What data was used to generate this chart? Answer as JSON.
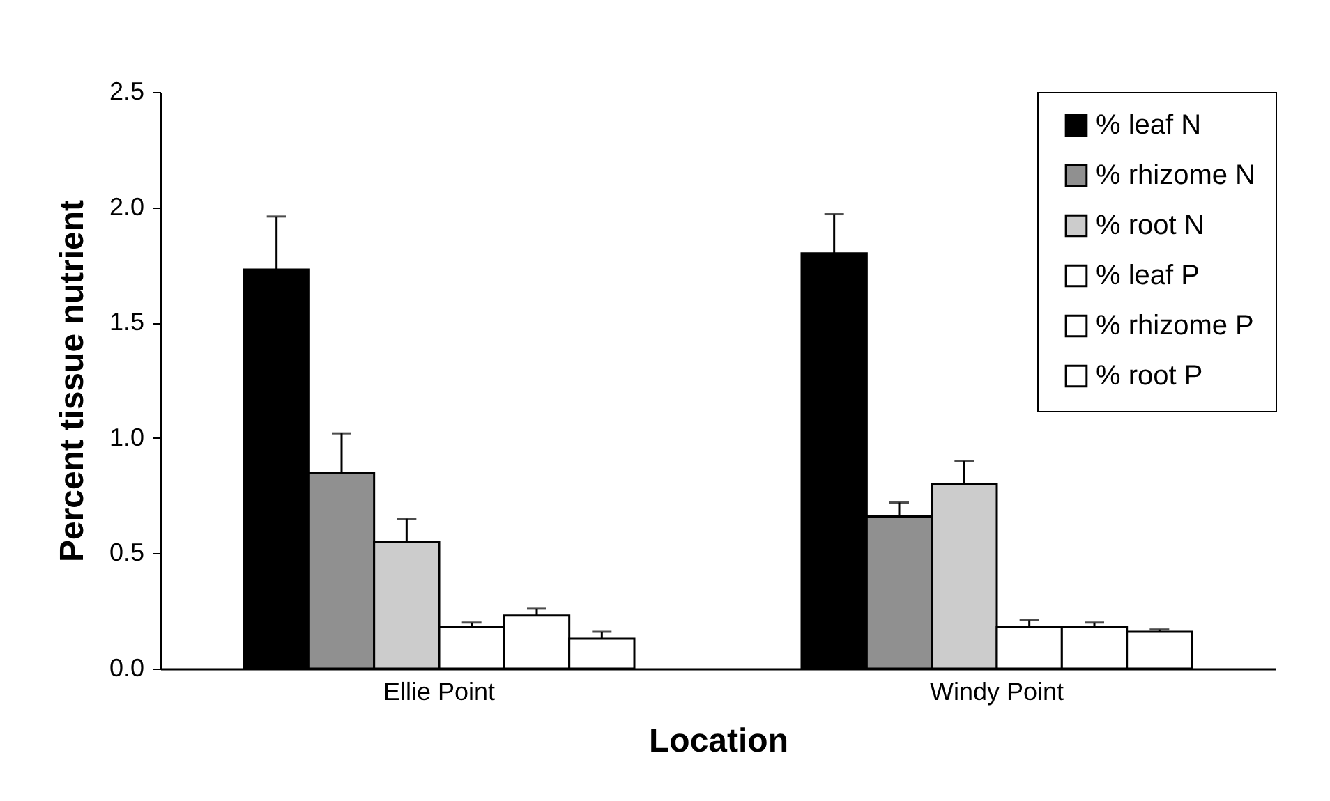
{
  "chart_data": {
    "type": "bar",
    "xlabel": "Location",
    "ylabel": "Percent tissue nutrient",
    "categories": [
      "Ellie Point",
      "Windy Point"
    ],
    "series": [
      {
        "name": "% leaf N",
        "color": "#000000",
        "values": [
          1.73,
          1.8
        ],
        "errors": [
          0.23,
          0.17
        ]
      },
      {
        "name": "% rhizome N",
        "color": "#909090",
        "values": [
          0.85,
          0.66
        ],
        "errors": [
          0.17,
          0.06
        ]
      },
      {
        "name": "% root N",
        "color": "#cccccc",
        "values": [
          0.55,
          0.8
        ],
        "errors": [
          0.1,
          0.1
        ]
      },
      {
        "name": "% leaf P",
        "color": "#ffffff",
        "values": [
          0.18,
          0.18
        ],
        "errors": [
          0.02,
          0.03
        ]
      },
      {
        "name": "% rhizome P",
        "color": "#ffffff",
        "values": [
          0.23,
          0.18
        ],
        "errors": [
          0.03,
          0.02
        ]
      },
      {
        "name": "% root P",
        "color": "#ffffff",
        "values": [
          0.13,
          0.16
        ],
        "errors": [
          0.03,
          0.01
        ]
      }
    ],
    "ylim": [
      0,
      2.5
    ],
    "yticks": [
      {
        "value": 0,
        "label": "0.0"
      },
      {
        "value": 0.5,
        "label": "0.5"
      },
      {
        "value": 1,
        "label": "1.0"
      },
      {
        "value": 1.5,
        "label": "1.5"
      },
      {
        "value": 2,
        "label": "2.0"
      },
      {
        "value": 2.5,
        "label": "2.5"
      }
    ],
    "grid": false,
    "legend": "top right"
  }
}
